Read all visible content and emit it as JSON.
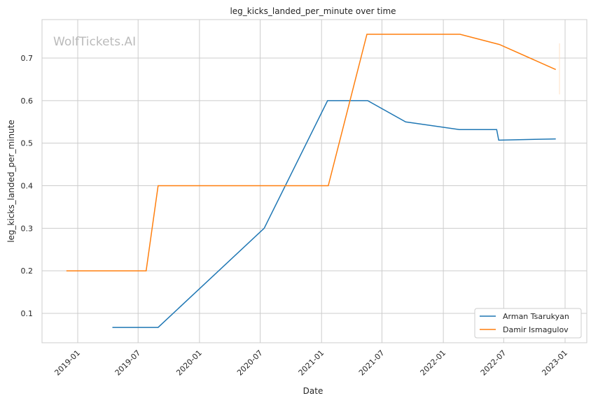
{
  "chart_data": {
    "type": "line",
    "title": "leg_kicks_landed_per_minute over time",
    "xlabel": "Date",
    "ylabel": "leg_kicks_landed_per_minute",
    "watermark": "WolfTickets.AI",
    "xlim": [
      "2018-10-15",
      "2023-01-31"
    ],
    "ylim": [
      0.032,
      0.79
    ],
    "x_ticks": [
      "2019-01",
      "2019-07",
      "2020-01",
      "2020-07",
      "2021-01",
      "2021-07",
      "2022-01",
      "2022-07",
      "2023-01"
    ],
    "y_ticks": [
      0.1,
      0.2,
      0.3,
      0.4,
      0.5,
      0.6,
      0.7
    ],
    "grid": true,
    "legend_position": "bottom-right",
    "series": [
      {
        "name": "Arman Tsarukyan",
        "color": "#1f77b4",
        "x": [
          "2019-04-15",
          "2019-08-30",
          "2020-07-13",
          "2021-01-19",
          "2021-05-19",
          "2021-09-10",
          "2022-02-18",
          "2022-06-10",
          "2022-06-16",
          "2022-12-04"
        ],
        "y": [
          0.067,
          0.067,
          0.3,
          0.6,
          0.6,
          0.55,
          0.532,
          0.532,
          0.507,
          0.51
        ]
      },
      {
        "name": "Damir Ismagulov",
        "color": "#ff7f0e",
        "x": [
          "2018-11-28",
          "2019-07-25",
          "2019-08-30",
          "2021-01-21",
          "2021-05-17",
          "2022-02-20",
          "2022-06-18",
          "2022-12-04"
        ],
        "y": [
          0.2,
          0.2,
          0.4,
          0.4,
          0.756,
          0.756,
          0.732,
          0.673
        ]
      }
    ]
  }
}
